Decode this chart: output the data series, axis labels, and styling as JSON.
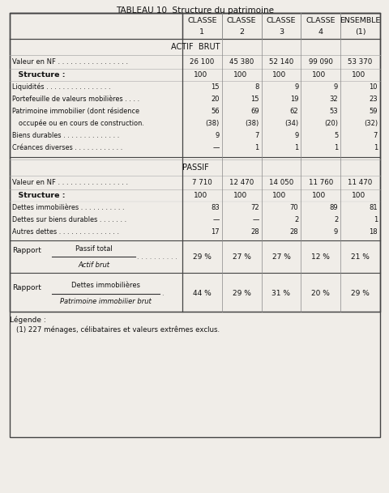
{
  "title": "TABLEAU 10  Structure du patrimoine",
  "bg_color": "#f0ede8",
  "text_color": "#1a1a1a",
  "col_headers": [
    [
      "CLASSE",
      "1"
    ],
    [
      "CLASSE",
      "2"
    ],
    [
      "CLASSE",
      "3"
    ],
    [
      "CLASSE",
      "4"
    ],
    [
      "ENSEMBLE",
      "(1)"
    ]
  ],
  "actif_valeur": [
    "26 100",
    "45 380",
    "52 140",
    "99 090",
    "53 370"
  ],
  "actif_struct": [
    "100",
    "100",
    "100",
    "100",
    "100"
  ],
  "actif_rows": [
    [
      "Liquidités . . . . . . . . . . . . . . . .",
      [
        "15",
        "8",
        "9",
        "9",
        "10"
      ]
    ],
    [
      "Portefeuille de valeurs mobilières . . . .",
      [
        "20",
        "15",
        "19",
        "32",
        "23"
      ]
    ],
    [
      "Patrimoine immobilier (dont résidence",
      [
        "56",
        "69",
        "62",
        "53",
        "59"
      ]
    ],
    [
      "   occupée ou en cours de construction.",
      [
        "(38)",
        "(38)",
        "(34)",
        "(20)",
        "(32)"
      ]
    ],
    [
      "Biens durables . . . . . . . . . . . . . .",
      [
        "9",
        "7",
        "9",
        "5",
        "7"
      ]
    ],
    [
      "Créances diverses . . . . . . . . . . . .",
      [
        "—",
        "1",
        "1",
        "1",
        "1"
      ]
    ]
  ],
  "passif_valeur": [
    "7 710",
    "12 470",
    "14 050",
    "11 760",
    "11 470"
  ],
  "passif_struct": [
    "100",
    "100",
    "100",
    "100",
    "100"
  ],
  "passif_rows": [
    [
      "Dettes immobilières . . . . . . . . . . .",
      [
        "83",
        "72",
        "70",
        "89",
        "81"
      ]
    ],
    [
      "Dettes sur biens durables . . . . . . .",
      [
        "—",
        "—",
        "2",
        "2",
        "1"
      ]
    ],
    [
      "Autres dettes . . . . . . . . . . . . . . .",
      [
        "17",
        "28",
        "28",
        "9",
        "18"
      ]
    ]
  ],
  "rapport1_vals": [
    "29 %",
    "27 %",
    "27 %",
    "12 %",
    "21 %"
  ],
  "rapport2_vals": [
    "44 %",
    "29 %",
    "31 %",
    "20 %",
    "29 %"
  ],
  "legend_line1": "Légende :",
  "legend_line2": "(1) 227 ménages, célibataires et valeurs extrêmes exclus."
}
